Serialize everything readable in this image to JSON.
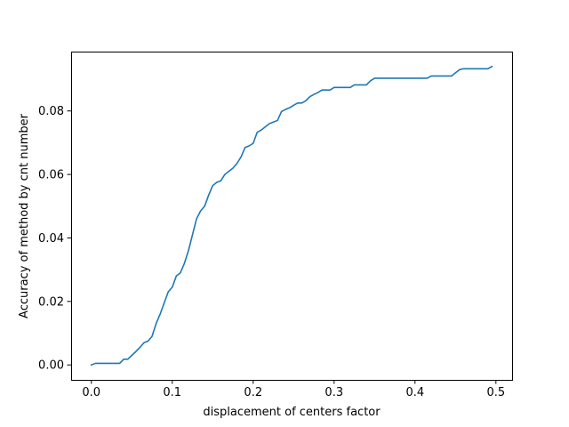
{
  "chart_data": {
    "type": "line",
    "title": "",
    "xlabel": "displacement of centers factor",
    "ylabel": "Accuracy of method by cnt number",
    "xlim": [
      -0.025,
      0.52
    ],
    "ylim": [
      -0.0047,
      0.0987
    ],
    "xticks": [
      0.0,
      0.1,
      0.2,
      0.3,
      0.4,
      0.5
    ],
    "xtick_labels": [
      "0.0",
      "0.1",
      "0.2",
      "0.3",
      "0.4",
      "0.5"
    ],
    "yticks": [
      0.0,
      0.02,
      0.04,
      0.06,
      0.08
    ],
    "ytick_labels": [
      "0.00",
      "0.02",
      "0.04",
      "0.06",
      "0.08"
    ],
    "grid": false,
    "line_color": "#1f77b4",
    "series": [
      {
        "x": [
          0.0,
          0.005,
          0.01,
          0.02,
          0.03,
          0.035,
          0.04,
          0.045,
          0.05,
          0.055,
          0.06,
          0.065,
          0.07,
          0.075,
          0.08,
          0.085,
          0.09,
          0.095,
          0.1,
          0.105,
          0.11,
          0.115,
          0.12,
          0.125,
          0.13,
          0.135,
          0.14,
          0.145,
          0.15,
          0.155,
          0.16,
          0.165,
          0.17,
          0.175,
          0.18,
          0.185,
          0.19,
          0.195,
          0.2,
          0.205,
          0.21,
          0.215,
          0.22,
          0.225,
          0.23,
          0.235,
          0.24,
          0.245,
          0.25,
          0.255,
          0.26,
          0.265,
          0.27,
          0.275,
          0.28,
          0.285,
          0.29,
          0.295,
          0.3,
          0.305,
          0.31,
          0.315,
          0.32,
          0.325,
          0.33,
          0.335,
          0.34,
          0.345,
          0.35,
          0.36,
          0.37,
          0.38,
          0.39,
          0.4,
          0.41,
          0.415,
          0.42,
          0.43,
          0.44,
          0.445,
          0.45,
          0.455,
          0.46,
          0.47,
          0.48,
          0.49,
          0.495
        ],
        "y": [
          0.0,
          0.0005,
          0.0005,
          0.0005,
          0.0005,
          0.0005,
          0.0018,
          0.0018,
          0.003,
          0.0042,
          0.0055,
          0.007,
          0.0075,
          0.009,
          0.013,
          0.016,
          0.0195,
          0.023,
          0.0245,
          0.028,
          0.029,
          0.032,
          0.036,
          0.041,
          0.046,
          0.0485,
          0.05,
          0.0535,
          0.0565,
          0.0575,
          0.058,
          0.06,
          0.061,
          0.062,
          0.0635,
          0.0655,
          0.0685,
          0.069,
          0.0698,
          0.0733,
          0.074,
          0.075,
          0.076,
          0.0765,
          0.077,
          0.0798,
          0.0805,
          0.081,
          0.0818,
          0.0825,
          0.0825,
          0.0832,
          0.0845,
          0.0852,
          0.0858,
          0.0866,
          0.0866,
          0.0866,
          0.0874,
          0.0874,
          0.0874,
          0.0874,
          0.0874,
          0.0882,
          0.0882,
          0.0882,
          0.0882,
          0.0895,
          0.0903,
          0.0903,
          0.0903,
          0.0903,
          0.0903,
          0.0903,
          0.0903,
          0.0903,
          0.091,
          0.091,
          0.091,
          0.091,
          0.092,
          0.093,
          0.0933,
          0.0933,
          0.0933,
          0.0933,
          0.094
        ]
      }
    ]
  }
}
